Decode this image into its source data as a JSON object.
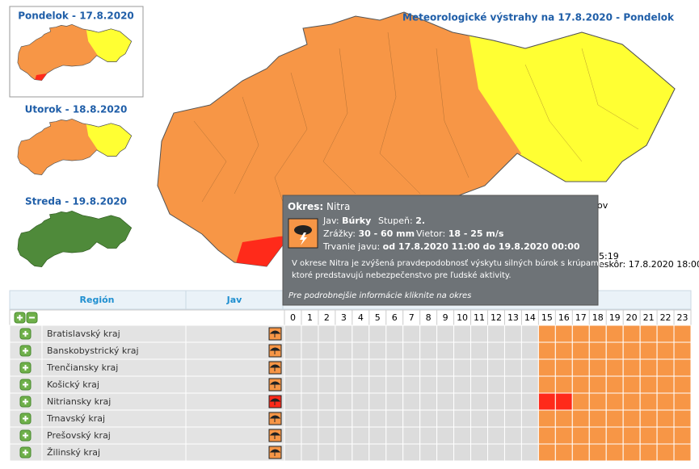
{
  "days": [
    {
      "label": "Pondelok - 17.8.2020"
    },
    {
      "label": "Utorok - 18.8.2020"
    },
    {
      "label": "Streda - 19.8.2020"
    }
  ],
  "map_title": "Meteorologické výstrahy na 17.8.2020 - Pondelok",
  "background_fragments": [
    "ov",
    "5:19",
    "eskôr: 17.8.2020 18:00"
  ],
  "tooltip": {
    "heading": "Okres:",
    "district": "Nitra",
    "phenomenon_label": "Jav:",
    "phenomenon": "Búrky",
    "level_label": "Stupeň:",
    "level": "2.",
    "precip_label": "Zrážky:",
    "precip": "30 - 60 mm",
    "wind_label": "Vietor:",
    "wind": "18 - 25 m/s",
    "duration_label": "Trvanie javu:",
    "duration": "od 17.8.2020 11:00 do 19.8.2020 00:00",
    "description": [
      "V okrese Nitra je zvýšená pravdepodobnosť výskytu silných búrok s krúpami,",
      "ktoré predstavujú nebezpečenstvo pre ľudské aktivity."
    ],
    "link": "Pre podrobnejšie informácie kliknite na okres"
  },
  "table": {
    "headers": [
      "Región",
      "Jav"
    ],
    "hours": [
      0,
      1,
      2,
      3,
      4,
      5,
      6,
      7,
      8,
      9,
      10,
      11,
      12,
      13,
      14,
      15,
      16,
      17,
      18,
      19,
      20,
      21,
      22,
      23
    ],
    "colors": {
      "n": "#dcdcdc",
      "o": "#f79646",
      "r": "#ff2a1a"
    },
    "rows": [
      {
        "name": "Bratislavský kraj",
        "icon": "o",
        "cells": "nnnnnnnnnnnnnnnooooooooo"
      },
      {
        "name": "Banskobystrický kraj",
        "icon": "o",
        "cells": "nnnnnnnnnnnnnnnooooooooo"
      },
      {
        "name": "Trenčiansky kraj",
        "icon": "o",
        "cells": "nnnnnnnnnnnnnnnooooooooo"
      },
      {
        "name": "Košický kraj",
        "icon": "o",
        "cells": "nnnnnnnnnnnnnnnooooooooo"
      },
      {
        "name": "Nitriansky kraj",
        "icon": "r",
        "cells": "nnnnnnnnnnnnnnnrrooooooo"
      },
      {
        "name": "Trnavský kraj",
        "icon": "o",
        "cells": "nnnnnnnnnnnnnnnooooooooo"
      },
      {
        "name": "Prešovský kraj",
        "icon": "o",
        "cells": "nnnnnnnnnnnnnnnooooooooo"
      },
      {
        "name": "Žilinský kraj",
        "icon": "o",
        "cells": "nnnnnnnnnnnnnnnooooooooo"
      }
    ]
  }
}
